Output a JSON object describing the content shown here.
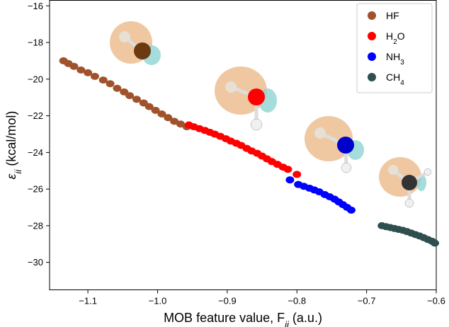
{
  "chart_data": {
    "type": "scatter",
    "xlabel": "MOB feature value, F",
    "xlabel_sub": "ii",
    "xlabel_unit": " (a.u.)",
    "ylabel": "ε",
    "ylabel_sub": "ii",
    "ylabel_unit": " (kcal/mol)",
    "xlim": [
      -1.155,
      -0.6
    ],
    "ylim": [
      -31.5,
      -15.7
    ],
    "xticks": [
      -1.1,
      -1.0,
      -0.9,
      -0.8,
      -0.7,
      -0.6
    ],
    "xtick_labels": [
      "−1.1",
      "−1.0",
      "−0.9",
      "−0.8",
      "−0.7",
      "−0.6"
    ],
    "yticks": [
      -16,
      -18,
      -20,
      -22,
      -24,
      -26,
      -28,
      -30
    ],
    "ytick_labels": [
      "−16",
      "−18",
      "−20",
      "−22",
      "−24",
      "−26",
      "−28",
      "−30"
    ],
    "grid": false,
    "legend_position": "top-right",
    "series": [
      {
        "name": "HF",
        "label_main": "HF",
        "label_sub": "",
        "label_tail": "",
        "color": "#a0522d",
        "points": [
          [
            -1.135,
            -19.0
          ],
          [
            -1.128,
            -19.15
          ],
          [
            -1.12,
            -19.3
          ],
          [
            -1.11,
            -19.5
          ],
          [
            -1.1,
            -19.65
          ],
          [
            -1.09,
            -19.85
          ],
          [
            -1.078,
            -20.05
          ],
          [
            -1.068,
            -20.25
          ],
          [
            -1.058,
            -20.5
          ],
          [
            -1.048,
            -20.7
          ],
          [
            -1.04,
            -20.9
          ],
          [
            -1.03,
            -21.1
          ],
          [
            -1.02,
            -21.3
          ],
          [
            -1.012,
            -21.5
          ],
          [
            -1.003,
            -21.7
          ],
          [
            -0.994,
            -21.9
          ],
          [
            -0.985,
            -22.1
          ],
          [
            -0.976,
            -22.3
          ],
          [
            -0.967,
            -22.45
          ],
          [
            -0.958,
            -22.6
          ]
        ]
      },
      {
        "name": "H2O",
        "label_main": "H",
        "label_sub": "2",
        "label_tail": "O",
        "color": "#ff0000",
        "points": [
          [
            -0.955,
            -22.5
          ],
          [
            -0.948,
            -22.6
          ],
          [
            -0.94,
            -22.7
          ],
          [
            -0.932,
            -22.8
          ],
          [
            -0.925,
            -22.9
          ],
          [
            -0.918,
            -23.0
          ],
          [
            -0.91,
            -23.12
          ],
          [
            -0.902,
            -23.25
          ],
          [
            -0.895,
            -23.38
          ],
          [
            -0.887,
            -23.5
          ],
          [
            -0.88,
            -23.62
          ],
          [
            -0.872,
            -23.78
          ],
          [
            -0.865,
            -23.92
          ],
          [
            -0.857,
            -24.05
          ],
          [
            -0.85,
            -24.2
          ],
          [
            -0.843,
            -24.35
          ],
          [
            -0.836,
            -24.5
          ],
          [
            -0.828,
            -24.65
          ],
          [
            -0.82,
            -24.8
          ],
          [
            -0.813,
            -24.92
          ],
          [
            -0.8,
            -25.2
          ]
        ]
      },
      {
        "name": "NH3",
        "label_main": "NH",
        "label_sub": "3",
        "label_tail": "",
        "color": "#0000ff",
        "points": [
          [
            -0.81,
            -25.5
          ],
          [
            -0.798,
            -25.75
          ],
          [
            -0.79,
            -25.85
          ],
          [
            -0.782,
            -25.95
          ],
          [
            -0.775,
            -26.05
          ],
          [
            -0.768,
            -26.15
          ],
          [
            -0.76,
            -26.3
          ],
          [
            -0.753,
            -26.42
          ],
          [
            -0.746,
            -26.55
          ],
          [
            -0.74,
            -26.7
          ],
          [
            -0.734,
            -26.85
          ],
          [
            -0.728,
            -27.0
          ],
          [
            -0.722,
            -27.15
          ]
        ]
      },
      {
        "name": "CH4",
        "label_main": "CH",
        "label_sub": "4",
        "label_tail": "",
        "color": "#2f4f4f",
        "points": [
          [
            -0.678,
            -28.0
          ],
          [
            -0.672,
            -28.05
          ],
          [
            -0.666,
            -28.1
          ],
          [
            -0.66,
            -28.15
          ],
          [
            -0.654,
            -28.2
          ],
          [
            -0.648,
            -28.25
          ],
          [
            -0.642,
            -28.32
          ],
          [
            -0.636,
            -28.4
          ],
          [
            -0.63,
            -28.48
          ],
          [
            -0.624,
            -28.56
          ],
          [
            -0.618,
            -28.65
          ],
          [
            -0.612,
            -28.75
          ],
          [
            -0.606,
            -28.85
          ],
          [
            -0.602,
            -28.95
          ]
        ]
      }
    ]
  }
}
